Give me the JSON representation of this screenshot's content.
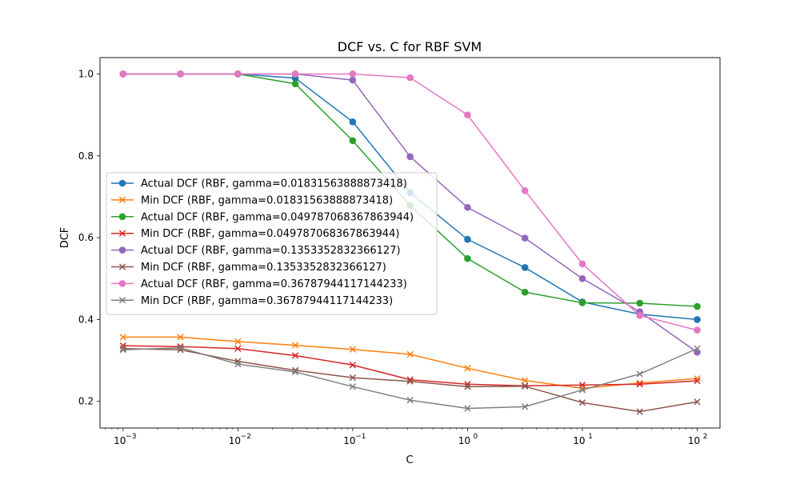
{
  "chart_data": {
    "type": "line",
    "title": "DCF vs. C for RBF SVM",
    "xlabel": "C",
    "ylabel": "DCF",
    "xscale": "log",
    "xlim": [
      0.00063,
      158
    ],
    "ylim": [
      0.135,
      1.04
    ],
    "x": [
      0.001,
      0.0031623,
      0.01,
      0.031623,
      0.1,
      0.31623,
      1,
      3.1623,
      10,
      31.623,
      100
    ],
    "xticks": [
      {
        "value": 0.001,
        "base": "10",
        "exp": "−3"
      },
      {
        "value": 0.01,
        "base": "10",
        "exp": "−2"
      },
      {
        "value": 0.1,
        "base": "10",
        "exp": "−1"
      },
      {
        "value": 1,
        "base": "10",
        "exp": "0"
      },
      {
        "value": 10,
        "base": "10",
        "exp": "1"
      },
      {
        "value": 100,
        "base": "10",
        "exp": "2"
      }
    ],
    "yticks": [
      {
        "value": 0.2,
        "label": "0.2"
      },
      {
        "value": 0.4,
        "label": "0.4"
      },
      {
        "value": 0.6,
        "label": "0.6"
      },
      {
        "value": 0.8,
        "label": "0.8"
      },
      {
        "value": 1.0,
        "label": "1.0"
      }
    ],
    "grid": false,
    "legend_position": "center-left",
    "series": [
      {
        "name": "Actual DCF (RBF, gamma=0.01831563888873418)",
        "color": "#1f77b4",
        "marker": "circle",
        "values": [
          1.0,
          1.0,
          1.0,
          0.99,
          0.883,
          0.71,
          0.596,
          0.527,
          0.443,
          0.413,
          0.4
        ]
      },
      {
        "name": "Min DCF (RBF, gamma=0.01831563888873418)",
        "color": "#ff7f0e",
        "marker": "x",
        "values": [
          0.357,
          0.357,
          0.346,
          0.337,
          0.327,
          0.315,
          0.281,
          0.251,
          0.232,
          0.245,
          0.256
        ]
      },
      {
        "name": "Actual DCF (RBF, gamma=0.049787068367863944)",
        "color": "#2ca02c",
        "marker": "circle",
        "values": [
          1.0,
          1.0,
          1.0,
          0.976,
          0.837,
          0.679,
          0.549,
          0.467,
          0.441,
          0.44,
          0.432
        ]
      },
      {
        "name": "Min DCF (RBF, gamma=0.049787068367863944)",
        "color": "#d62728",
        "marker": "x",
        "values": [
          0.336,
          0.334,
          0.329,
          0.312,
          0.289,
          0.253,
          0.242,
          0.238,
          0.24,
          0.242,
          0.25
        ]
      },
      {
        "name": "Actual DCF (RBF, gamma=0.1353352832366127)",
        "color": "#9467bd",
        "marker": "circle",
        "values": [
          1.0,
          1.0,
          1.0,
          1.0,
          0.985,
          0.798,
          0.674,
          0.599,
          0.5,
          0.419,
          0.32
        ]
      },
      {
        "name": "Min DCF (RBF, gamma=0.1353352832366127)",
        "color": "#8c564b",
        "marker": "x",
        "values": [
          0.329,
          0.326,
          0.298,
          0.276,
          0.258,
          0.249,
          0.236,
          0.237,
          0.197,
          0.175,
          0.199
        ]
      },
      {
        "name": "Actual DCF (RBF, gamma=0.36787944117144233)",
        "color": "#e377c2",
        "marker": "circle",
        "values": [
          1.0,
          1.0,
          1.0,
          1.0,
          1.0,
          0.991,
          0.9,
          0.715,
          0.536,
          0.41,
          0.374
        ]
      },
      {
        "name": "Min DCF (RBF, gamma=0.36787944117144233)",
        "color": "#7f7f7f",
        "marker": "x",
        "values": [
          0.326,
          0.331,
          0.291,
          0.272,
          0.236,
          0.203,
          0.183,
          0.187,
          0.228,
          0.267,
          0.329
        ]
      }
    ]
  }
}
